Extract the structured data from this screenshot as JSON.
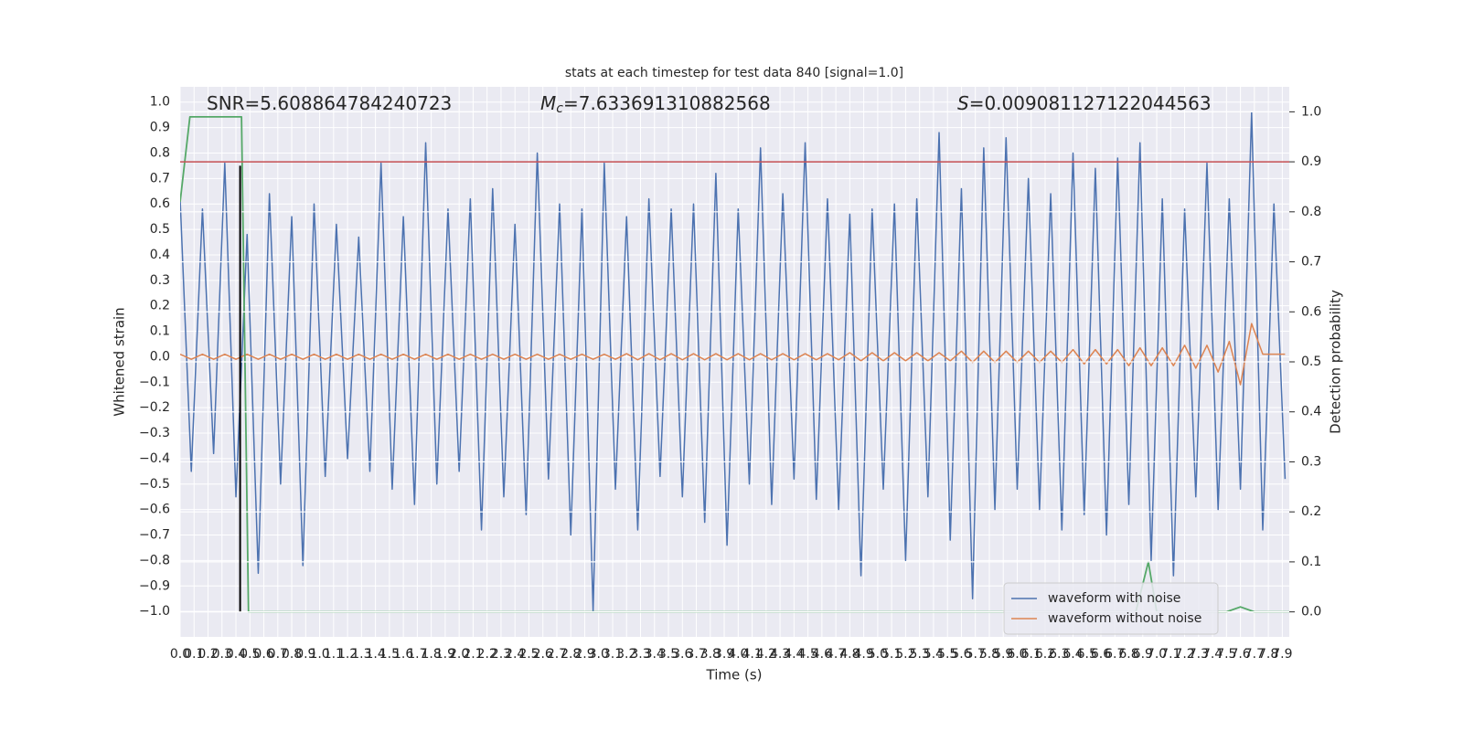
{
  "chart_data": {
    "type": "line",
    "title": "stats at each timestep for test data 840 [signal=1.0]",
    "xlabel": "Time (s)",
    "ylabel": "Whitened strain",
    "y2label": "Detection probability",
    "annotations": [
      {
        "text": "SNR=5.608864784240723"
      },
      {
        "symbol": "M",
        "sub": "c",
        "text": "=7.633691310882568"
      },
      {
        "symbol": "S",
        "text": "=0.009081127122044563"
      }
    ],
    "xlim": [
      0,
      7.95
    ],
    "ylim": [
      -1.1,
      1.06
    ],
    "y2lim": [
      -0.05,
      1.05
    ],
    "grid": true,
    "legend": "lower right",
    "xticks": [
      {
        "value": 0,
        "label": "0.0"
      },
      0.1,
      0.2,
      0.3,
      0.4,
      0.5,
      0.6,
      0.7,
      0.8,
      0.9,
      {
        "value": 1,
        "label": "1.0"
      },
      1.1,
      1.2,
      1.3,
      1.4,
      1.5,
      1.6,
      1.7,
      1.8,
      1.9,
      {
        "value": 2,
        "label": "2.0"
      },
      2.1,
      2.2,
      2.3,
      2.4,
      2.5,
      2.6,
      2.7,
      2.8,
      2.9,
      {
        "value": 3,
        "label": "3.0"
      },
      3.1,
      3.2,
      3.3,
      3.4,
      3.5,
      3.6,
      3.7,
      3.8,
      3.9,
      {
        "value": 4,
        "label": "4.0"
      },
      4.1,
      4.2,
      4.3,
      4.4,
      4.5,
      4.6,
      4.7,
      4.8,
      4.9,
      {
        "value": 5,
        "label": "5.0"
      },
      5.1,
      5.2,
      5.3,
      5.4,
      5.5,
      5.6,
      5.7,
      5.8,
      5.9,
      {
        "value": 6,
        "label": "6.0"
      },
      6.1,
      6.2,
      6.3,
      6.4,
      6.5,
      6.6,
      6.7,
      6.8,
      6.9,
      {
        "value": 7,
        "label": "7.0"
      },
      7.1,
      7.2,
      7.3,
      7.4,
      7.5,
      7.6,
      7.7,
      7.8,
      7.9
    ],
    "yticks": [
      {
        "value": -1,
        "label": "−1.0"
      },
      {
        "value": -0.9,
        "label": "−0.9"
      },
      {
        "value": -0.8,
        "label": "−0.8"
      },
      {
        "value": -0.7,
        "label": "−0.7"
      },
      {
        "value": -0.6,
        "label": "−0.6"
      },
      {
        "value": -0.5,
        "label": "−0.5"
      },
      {
        "value": -0.4,
        "label": "−0.4"
      },
      {
        "value": -0.3,
        "label": "−0.3"
      },
      {
        "value": -0.2,
        "label": "−0.2"
      },
      {
        "value": -0.1,
        "label": "−0.1"
      },
      {
        "value": 0,
        "label": "0.0"
      },
      0.1,
      0.2,
      0.3,
      0.4,
      0.5,
      0.6,
      0.7,
      0.8,
      0.9,
      {
        "value": 1,
        "label": "1.0"
      }
    ],
    "y2ticks": [
      {
        "value": 0,
        "label": "0.0"
      },
      0.1,
      0.2,
      0.3,
      0.4,
      0.5,
      0.6,
      0.7,
      0.8,
      0.9,
      {
        "value": 1,
        "label": "1.0"
      }
    ],
    "threshold": {
      "value": 0.9,
      "axis": "y2",
      "color": "#c44e52"
    },
    "vline": {
      "x": 0.43,
      "ymin": -1.0,
      "ymax": 0.75,
      "color": "#000000"
    },
    "x": [
      0,
      0.08,
      0.16,
      0.24,
      0.32,
      0.4,
      0.48,
      0.56,
      0.64,
      0.72,
      0.8,
      0.88,
      0.96,
      1.04,
      1.12,
      1.2,
      1.28,
      1.36,
      1.44,
      1.52,
      1.6,
      1.68,
      1.76,
      1.84,
      1.92,
      2.0,
      2.08,
      2.16,
      2.24,
      2.32,
      2.4,
      2.48,
      2.56,
      2.64,
      2.72,
      2.8,
      2.88,
      2.96,
      3.04,
      3.12,
      3.2,
      3.28,
      3.36,
      3.44,
      3.52,
      3.6,
      3.68,
      3.76,
      3.84,
      3.92,
      4.0,
      4.08,
      4.16,
      4.24,
      4.32,
      4.4,
      4.48,
      4.56,
      4.64,
      4.72,
      4.8,
      4.88,
      4.96,
      5.04,
      5.12,
      5.2,
      5.28,
      5.36,
      5.44,
      5.52,
      5.6,
      5.68,
      5.76,
      5.84,
      5.92,
      6.0,
      6.08,
      6.16,
      6.24,
      6.32,
      6.4,
      6.48,
      6.56,
      6.64,
      6.72,
      6.8,
      6.88,
      6.96,
      7.04,
      7.12,
      7.2,
      7.28,
      7.36,
      7.44,
      7.52,
      7.6,
      7.68,
      7.76,
      7.84,
      7.92
    ],
    "series": [
      {
        "name": "waveform with noise",
        "color": "#4c72b0",
        "values": [
          0.62,
          -0.45,
          0.58,
          -0.38,
          0.76,
          -0.55,
          0.48,
          -0.85,
          0.64,
          -0.5,
          0.55,
          -0.82,
          0.6,
          -0.47,
          0.52,
          -0.4,
          0.47,
          -0.45,
          0.76,
          -0.52,
          0.55,
          -0.58,
          0.84,
          -0.5,
          0.58,
          -0.45,
          0.62,
          -0.68,
          0.66,
          -0.55,
          0.52,
          -0.62,
          0.8,
          -0.48,
          0.6,
          -0.7,
          0.58,
          -1.0,
          0.76,
          -0.52,
          0.55,
          -0.68,
          0.62,
          -0.47,
          0.58,
          -0.55,
          0.6,
          -0.65,
          0.72,
          -0.74,
          0.58,
          -0.5,
          0.82,
          -0.58,
          0.64,
          -0.48,
          0.84,
          -0.56,
          0.62,
          -0.6,
          0.56,
          -0.86,
          0.58,
          -0.52,
          0.6,
          -0.8,
          0.62,
          -0.55,
          0.88,
          -0.72,
          0.66,
          -0.95,
          0.82,
          -0.6,
          0.86,
          -0.52,
          0.7,
          -0.6,
          0.64,
          -0.68,
          0.8,
          -0.62,
          0.74,
          -0.7,
          0.78,
          -0.58,
          0.84,
          -0.8,
          0.62,
          -0.86,
          0.58,
          -0.55,
          0.76,
          -0.6,
          0.62,
          -0.52,
          0.96,
          -0.68,
          0.6,
          -0.48
        ]
      },
      {
        "name": "waveform without noise",
        "color": "#dd8452",
        "values": [
          0.01,
          -0.01,
          0.01,
          -0.01,
          0.01,
          -0.01,
          0.01,
          -0.01,
          0.01,
          -0.01,
          0.01,
          -0.01,
          0.01,
          -0.01,
          0.01,
          -0.01,
          0.01,
          -0.01,
          0.01,
          -0.01,
          0.01,
          -0.01,
          0.01,
          -0.01,
          0.01,
          -0.01,
          0.01,
          -0.01,
          0.01,
          -0.01,
          0.01,
          -0.01,
          0.01,
          -0.01,
          0.01,
          -0.01,
          0.01,
          -0.01,
          0.01,
          -0.01,
          0.012,
          -0.012,
          0.012,
          -0.012,
          0.012,
          -0.012,
          0.012,
          -0.012,
          0.012,
          -0.012,
          0.012,
          -0.012,
          0.012,
          -0.012,
          0.012,
          -0.012,
          0.012,
          -0.012,
          0.012,
          -0.012,
          0.016,
          -0.016,
          0.016,
          -0.016,
          0.016,
          -0.016,
          0.016,
          -0.016,
          0.016,
          -0.016,
          0.022,
          -0.022,
          0.022,
          -0.022,
          0.022,
          -0.022,
          0.022,
          -0.022,
          0.022,
          -0.022,
          0.028,
          -0.028,
          0.028,
          -0.028,
          0.028,
          -0.035,
          0.035,
          -0.035,
          0.035,
          -0.035,
          0.045,
          -0.045,
          0.045,
          -0.06,
          0.06,
          -0.11,
          0.13,
          0.01,
          0.01,
          0.01
        ]
      },
      {
        "color": "#55a868",
        "axis": "y2",
        "x": [
          0,
          0.07,
          0.1,
          0.43,
          0.44,
          0.49,
          6.85,
          6.94,
          7.0,
          7.5,
          7.6,
          7.7,
          7.95
        ],
        "values": [
          0.82,
          0.99,
          0.99,
          0.99,
          0.99,
          0.0,
          0.0,
          0.1,
          0.0,
          0.0,
          0.01,
          0.0,
          0.0
        ]
      }
    ]
  }
}
